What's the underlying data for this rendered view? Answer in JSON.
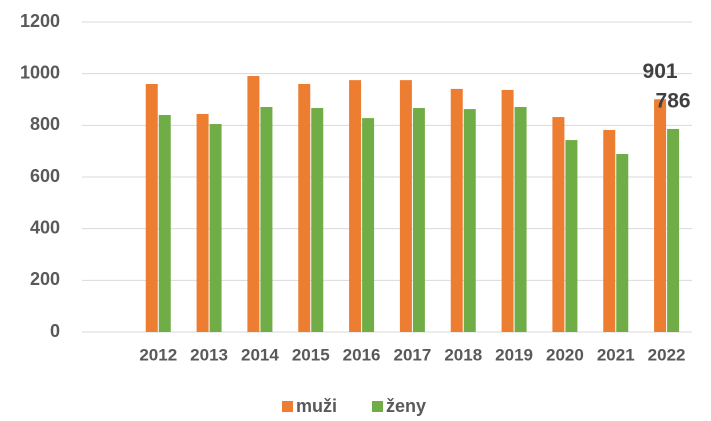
{
  "chart_data": {
    "type": "bar",
    "categories": [
      null,
      "2012",
      "2013",
      "2014",
      "2015",
      "2016",
      "2017",
      "2018",
      "2019",
      "2020",
      "2021",
      "2022"
    ],
    "series": [
      {
        "name": "muži",
        "color": "#ed7d31",
        "values": [
          null,
          960,
          844,
          991,
          960,
          975,
          975,
          941,
          937,
          832,
          782,
          901
        ],
        "value_labels": [
          null,
          null,
          null,
          null,
          null,
          null,
          null,
          null,
          null,
          null,
          null,
          "901"
        ]
      },
      {
        "name": "ženy",
        "color": "#70ad47",
        "values": [
          null,
          840,
          805,
          871,
          867,
          828,
          867,
          863,
          871,
          743,
          689,
          786
        ],
        "value_labels": [
          null,
          null,
          null,
          null,
          null,
          null,
          null,
          null,
          null,
          null,
          null,
          "786"
        ]
      }
    ],
    "ylim": [
      0,
      1200
    ],
    "yticks": [
      0,
      200,
      400,
      600,
      800,
      1000,
      1200
    ],
    "grid": true,
    "legend": "bottom"
  }
}
